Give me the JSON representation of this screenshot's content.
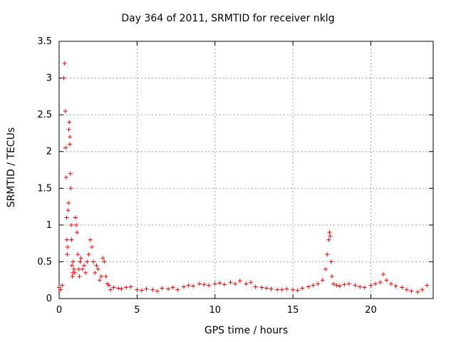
{
  "chart_data": {
    "type": "scatter",
    "title": "Day 364 of 2011, SRMTID for receiver nklg",
    "xlabel": "GPS time / hours",
    "ylabel": "SRMTID / TECUs",
    "xlim": [
      0,
      24
    ],
    "ylim": [
      0,
      3.5
    ],
    "xticks": [
      0,
      5,
      10,
      15,
      20
    ],
    "yticks": [
      0,
      0.5,
      1,
      1.5,
      2,
      2.5,
      3,
      3.5
    ],
    "grid": true,
    "marker": "+",
    "marker_color": "#ff0000",
    "series": [
      {
        "x": [
          0.0,
          0.1,
          0.2,
          0.3,
          0.35,
          0.4,
          0.42,
          0.45,
          0.48,
          0.5,
          0.52,
          0.55,
          0.58,
          0.6,
          0.62,
          0.65,
          0.68,
          0.7,
          0.72,
          0.75,
          0.78,
          0.8,
          0.82,
          0.85,
          0.88,
          0.9,
          0.95,
          1.0,
          1.05,
          1.1,
          1.15,
          1.2,
          1.25,
          1.3,
          1.35,
          1.4,
          1.5,
          1.6,
          1.7,
          1.8,
          1.9,
          2.0,
          2.1,
          2.2,
          2.3,
          2.4,
          2.5,
          2.6,
          2.7,
          2.8,
          2.9,
          3.0,
          3.1,
          3.2,
          3.3,
          3.5,
          3.8,
          4.0,
          4.3,
          4.6,
          5.0,
          5.3,
          5.6,
          6.0,
          6.3,
          6.6,
          7.0,
          7.3,
          7.6,
          8.0,
          8.3,
          8.6,
          9.0,
          9.3,
          9.6,
          10.0,
          10.3,
          10.6,
          11.0,
          11.3,
          11.6,
          12.0,
          12.3,
          12.6,
          13.0,
          13.3,
          13.6,
          14.0,
          14.3,
          14.6,
          15.0,
          15.3,
          15.6,
          16.0,
          16.3,
          16.6,
          16.9,
          17.1,
          17.2,
          17.3,
          17.35,
          17.4,
          17.45,
          17.5,
          17.6,
          17.8,
          18.0,
          18.3,
          18.6,
          19.0,
          19.3,
          19.6,
          20.0,
          20.3,
          20.6,
          20.8,
          21.0,
          21.3,
          21.6,
          22.0,
          22.3,
          22.6,
          23.0,
          23.3,
          23.6
        ],
        "y": [
          0.15,
          0.12,
          0.18,
          3.0,
          3.2,
          2.55,
          2.05,
          1.65,
          1.1,
          0.8,
          0.6,
          0.7,
          1.2,
          1.3,
          2.3,
          2.4,
          2.1,
          2.2,
          1.7,
          1.5,
          1.0,
          0.8,
          0.45,
          0.3,
          0.35,
          0.5,
          0.4,
          0.35,
          1.1,
          1.0,
          0.9,
          0.6,
          0.4,
          0.3,
          0.5,
          0.55,
          0.4,
          0.45,
          0.35,
          0.5,
          0.6,
          0.8,
          0.7,
          0.5,
          0.35,
          0.45,
          0.4,
          0.25,
          0.3,
          0.55,
          0.5,
          0.3,
          0.2,
          0.18,
          0.12,
          0.15,
          0.14,
          0.13,
          0.15,
          0.16,
          0.12,
          0.11,
          0.13,
          0.12,
          0.1,
          0.14,
          0.13,
          0.15,
          0.12,
          0.16,
          0.18,
          0.17,
          0.2,
          0.19,
          0.18,
          0.2,
          0.21,
          0.19,
          0.22,
          0.2,
          0.24,
          0.2,
          0.22,
          0.16,
          0.15,
          0.14,
          0.13,
          0.12,
          0.12,
          0.13,
          0.12,
          0.11,
          0.14,
          0.16,
          0.18,
          0.2,
          0.25,
          0.4,
          0.6,
          0.8,
          0.9,
          0.85,
          0.5,
          0.3,
          0.2,
          0.18,
          0.17,
          0.19,
          0.2,
          0.18,
          0.16,
          0.15,
          0.18,
          0.2,
          0.22,
          0.33,
          0.25,
          0.2,
          0.17,
          0.15,
          0.12,
          0.1,
          0.09,
          0.12,
          0.18
        ]
      }
    ]
  }
}
